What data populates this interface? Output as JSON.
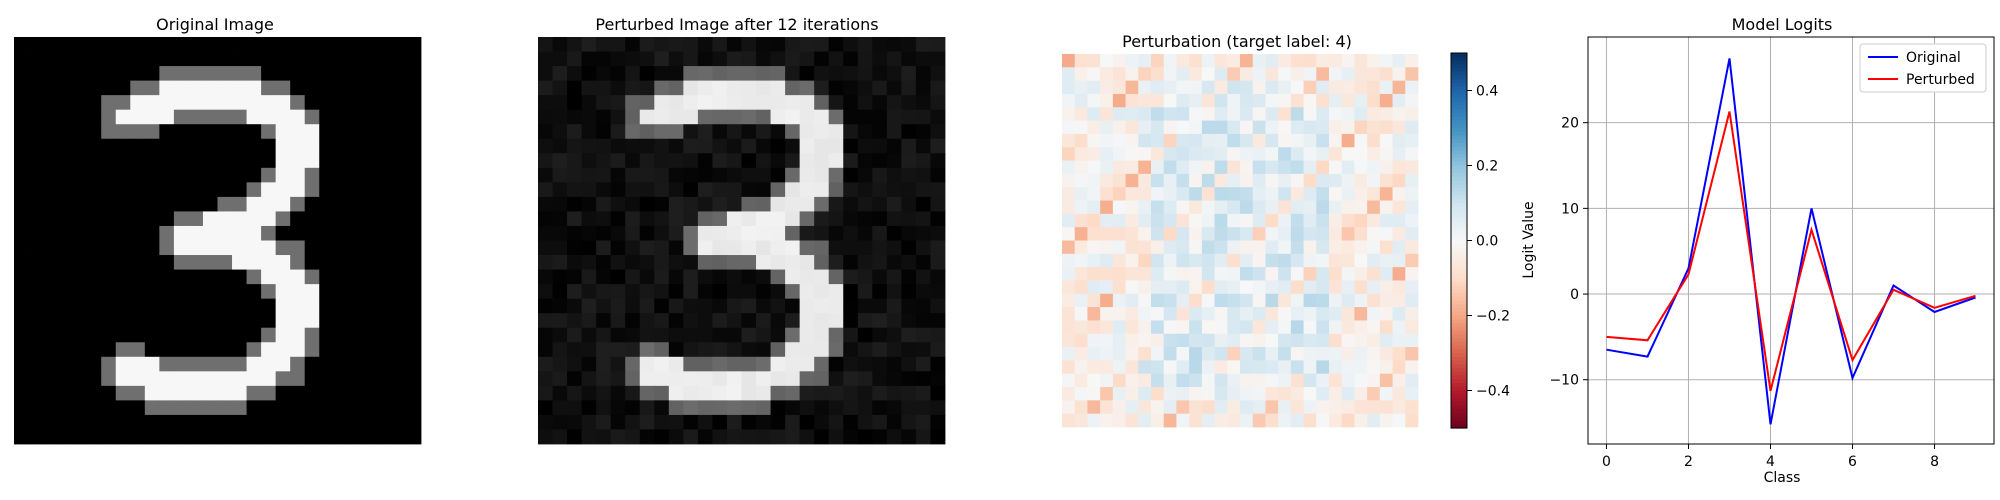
{
  "chart_data": [
    {
      "type": "heatmap",
      "title": "Original Image",
      "colormap": "gray",
      "axes_visible": false,
      "image": {
        "rows": 28,
        "cols": 28,
        "glyph": "digit-3",
        "background": 0.0,
        "ink": 0.97
      }
    },
    {
      "type": "heatmap",
      "title": "Perturbed Image after 12 iterations",
      "colormap": "gray",
      "axes_visible": false,
      "image": {
        "rows": 28,
        "cols": 28,
        "glyph": "digit-3",
        "background_range": [
          0.0,
          0.12
        ],
        "ink": 0.95
      }
    },
    {
      "type": "heatmap",
      "title": "Perturbation (target label: 4)",
      "colormap": "RdBu",
      "axes_visible": false,
      "image": {
        "rows": 28,
        "cols": 28,
        "value_range": [
          -0.1,
          0.1
        ]
      },
      "colorbar": {
        "vmin": -0.5,
        "vmax": 0.5,
        "ticks": [
          0.4,
          0.2,
          0.0,
          -0.2,
          -0.4
        ],
        "tick_labels": [
          "0.4",
          "0.2",
          "0.0",
          "−0.2",
          "−0.4"
        ]
      }
    },
    {
      "type": "line",
      "title": "Model Logits",
      "xlabel": "Class",
      "ylabel": "Logit Value",
      "x": [
        0,
        1,
        2,
        3,
        4,
        5,
        6,
        7,
        8,
        9
      ],
      "xlim": [
        -0.45,
        9.45
      ],
      "ylim": [
        -17.5,
        30
      ],
      "xticks": [
        0,
        2,
        4,
        6,
        8
      ],
      "xtick_labels": [
        "0",
        "2",
        "4",
        "6",
        "8"
      ],
      "yticks": [
        -10,
        0,
        10,
        20
      ],
      "ytick_labels": [
        "−10",
        "0",
        "10",
        "20"
      ],
      "grid": true,
      "legend": "top-right",
      "series": [
        {
          "name": "Original",
          "color": "#0000ff",
          "values": [
            -6.5,
            -7.3,
            3.0,
            27.5,
            -15.2,
            10.0,
            -9.8,
            1.0,
            -2.1,
            -0.4
          ]
        },
        {
          "name": "Perturbed",
          "color": "#ff0000",
          "values": [
            -5.0,
            -5.4,
            2.3,
            21.3,
            -11.3,
            7.5,
            -7.7,
            0.5,
            -1.6,
            -0.2
          ]
        }
      ]
    }
  ]
}
